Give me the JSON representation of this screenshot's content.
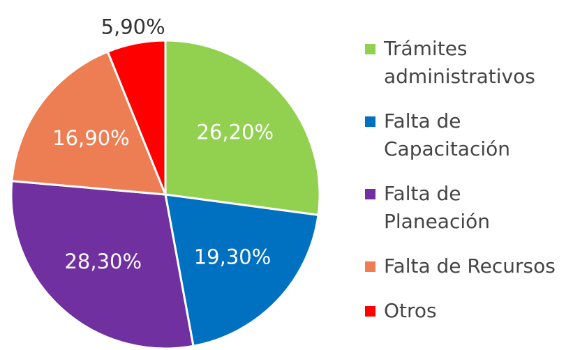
{
  "chart_data": {
    "type": "pie",
    "categories": [
      "Trámites administrativos",
      "Falta de Capacitación",
      "Falta de Planeación",
      "Falta de Recursos",
      "Otros"
    ],
    "values": [
      26.2,
      19.3,
      28.3,
      16.9,
      5.9
    ],
    "value_labels": [
      "26,20%",
      "19,30%",
      "28,30%",
      "16,90%",
      "5,90%"
    ],
    "colors": [
      "#92d050",
      "#0070c0",
      "#7030a0",
      "#ed7d52",
      "#ff0000"
    ],
    "legend": "right"
  }
}
